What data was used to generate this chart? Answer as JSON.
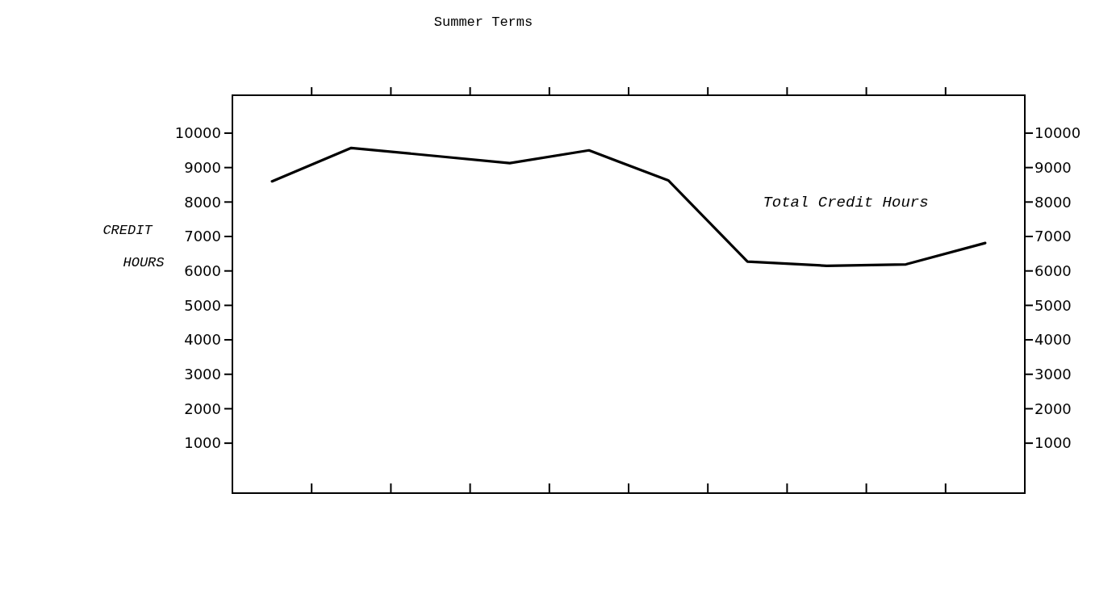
{
  "chart_data": {
    "type": "line",
    "title": "Summer Terms",
    "ylabel": "CREDIT HOURS",
    "annotations": [
      "Total Credit Hours"
    ],
    "categories": [
      null,
      null,
      null,
      null,
      null,
      null,
      null,
      null,
      null,
      null
    ],
    "series": [
      {
        "color": "#000000",
        "values": [
          8600,
          9570,
          null,
          9130,
          9500,
          8630,
          6270,
          6150,
          6190,
          6810
        ]
      }
    ],
    "ylim": [
      -450,
      11100
    ],
    "yticks": [
      1000,
      2000,
      3000,
      4000,
      5000,
      6000,
      7000,
      8000,
      9000,
      10000
    ],
    "y2lim": [
      -450,
      11100
    ],
    "y2ticks": [
      1000,
      2000,
      3000,
      4000,
      5000,
      6000,
      7000,
      8000,
      9000,
      10000
    ],
    "tick_labels": "y",
    "grid": false,
    "marker": "none",
    "line_style": "solid"
  }
}
